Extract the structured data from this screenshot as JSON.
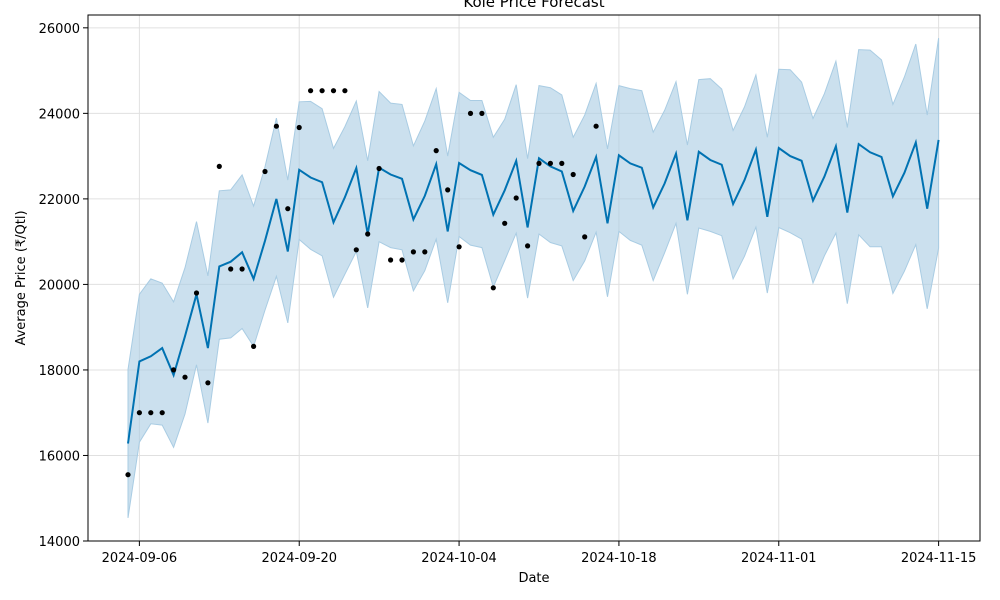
{
  "chart_data": {
    "type": "line",
    "title": "Kole Price Forecast",
    "xlabel": "Date",
    "ylabel": "Average Price (₹/Qtl)",
    "xlim": [
      "2024-09-01T12:00",
      "2024-11-18T15:00"
    ],
    "ylim": [
      14000,
      26300
    ],
    "x_ticks": [
      "2024-09-06",
      "2024-09-20",
      "2024-10-04",
      "2024-10-18",
      "2024-11-01",
      "2024-11-15"
    ],
    "y_ticks": [
      14000,
      16000,
      18000,
      20000,
      22000,
      24000,
      26000
    ],
    "grid": true,
    "colors": {
      "forecast": "#0072B2",
      "band": "#a9cce3",
      "observed": "#000000"
    },
    "series": [
      {
        "role": "forecast",
        "x": [
          "2024-09-05",
          "2024-09-06",
          "2024-09-07",
          "2024-09-08",
          "2024-09-09",
          "2024-09-10",
          "2024-09-11",
          "2024-09-12",
          "2024-09-13",
          "2024-09-14",
          "2024-09-15",
          "2024-09-16",
          "2024-09-17",
          "2024-09-18",
          "2024-09-19",
          "2024-09-20",
          "2024-09-21",
          "2024-09-22",
          "2024-09-23",
          "2024-09-24",
          "2024-09-25",
          "2024-09-26",
          "2024-09-27",
          "2024-09-28",
          "2024-09-29",
          "2024-09-30",
          "2024-10-01",
          "2024-10-02",
          "2024-10-03",
          "2024-10-04",
          "2024-10-05",
          "2024-10-06",
          "2024-10-07",
          "2024-10-08",
          "2024-10-09",
          "2024-10-10",
          "2024-10-11",
          "2024-10-12",
          "2024-10-13",
          "2024-10-14",
          "2024-10-15",
          "2024-10-16",
          "2024-10-17",
          "2024-10-18",
          "2024-10-19",
          "2024-10-20",
          "2024-10-21",
          "2024-10-22",
          "2024-10-23",
          "2024-10-24",
          "2024-10-25",
          "2024-10-26",
          "2024-10-27",
          "2024-10-28",
          "2024-10-29",
          "2024-10-30",
          "2024-10-31",
          "2024-11-01",
          "2024-11-02",
          "2024-11-03",
          "2024-11-04",
          "2024-11-05",
          "2024-11-06",
          "2024-11-07",
          "2024-11-08",
          "2024-11-09",
          "2024-11-10",
          "2024-11-11",
          "2024-11-12",
          "2024-11-13",
          "2024-11-14",
          "2024-11-15"
        ],
        "yhat": [
          16280,
          18200,
          18320,
          18510,
          17880,
          18790,
          19770,
          18510,
          20420,
          20530,
          20750,
          20130,
          21020,
          22000,
          20770,
          22680,
          22500,
          22390,
          21450,
          22040,
          22720,
          21180,
          22730,
          22570,
          22470,
          21520,
          22070,
          22810,
          21240,
          22840,
          22670,
          22560,
          21630,
          22200,
          22890,
          21330,
          22950,
          22760,
          22640,
          21720,
          22290,
          22980,
          21430,
          23020,
          22830,
          22730,
          21800,
          22360,
          23060,
          21500,
          23100,
          22910,
          22800,
          21880,
          22440,
          23150,
          21580,
          23190,
          23000,
          22890,
          21960,
          22520,
          23230,
          21680,
          23280,
          23090,
          22980,
          22060,
          22610,
          23320,
          21770,
          23380
        ],
        "upper": [
          18010,
          19770,
          20130,
          20030,
          19590,
          20390,
          21470,
          20200,
          22190,
          22210,
          22560,
          21830,
          22750,
          23890,
          22440,
          24270,
          24280,
          24110,
          23180,
          23690,
          24290,
          22890,
          24510,
          24240,
          24210,
          23240,
          23820,
          24580,
          23000,
          24490,
          24300,
          24300,
          23440,
          23860,
          24670,
          22940,
          24650,
          24600,
          24430,
          23440,
          23960,
          24700,
          23170,
          24650,
          24580,
          24530,
          23560,
          24070,
          24740,
          23260,
          24790,
          24810,
          24570,
          23600,
          24150,
          24900,
          23440,
          25030,
          25020,
          24730,
          23880,
          24460,
          25220,
          23670,
          25490,
          25480,
          25250,
          24210,
          24850,
          25620,
          23960,
          25760
        ],
        "lower": [
          14540,
          16310,
          16740,
          16710,
          16190,
          16970,
          18120,
          16760,
          18720,
          18750,
          18970,
          18550,
          19400,
          20190,
          19100,
          21050,
          20820,
          20670,
          19700,
          20240,
          20770,
          19450,
          21000,
          20860,
          20810,
          19850,
          20320,
          21060,
          19570,
          21120,
          20920,
          20860,
          19940,
          20560,
          21200,
          19680,
          21180,
          20980,
          20900,
          20090,
          20550,
          21220,
          19710,
          21240,
          21030,
          20920,
          20090,
          20740,
          21430,
          19770,
          21320,
          21240,
          21140,
          20130,
          20660,
          21340,
          19800,
          21330,
          21210,
          21060,
          20030,
          20670,
          21200,
          19550,
          21160,
          20880,
          20880,
          19790,
          20310,
          20930,
          19430,
          20850
        ]
      },
      {
        "role": "observed",
        "x": [
          "2024-09-05",
          "2024-09-06",
          "2024-09-07",
          "2024-09-08",
          "2024-09-09",
          "2024-09-10",
          "2024-09-11",
          "2024-09-12",
          "2024-09-13",
          "2024-09-14",
          "2024-09-15",
          "2024-09-16",
          "2024-09-17",
          "2024-09-18",
          "2024-09-19",
          "2024-09-20",
          "2024-09-21",
          "2024-09-22",
          "2024-09-23",
          "2024-09-24",
          "2024-09-25",
          "2024-09-26",
          "2024-09-27",
          "2024-09-28",
          "2024-09-29",
          "2024-09-30",
          "2024-10-01",
          "2024-10-02",
          "2024-10-03",
          "2024-10-04",
          "2024-10-05",
          "2024-10-06",
          "2024-10-07",
          "2024-10-08",
          "2024-10-09",
          "2024-10-10",
          "2024-10-11",
          "2024-10-12",
          "2024-10-13",
          "2024-10-14",
          "2024-10-15",
          "2024-10-16",
          "2024-10-17"
        ],
        "y": [
          15550,
          17000,
          17000,
          17000,
          18000,
          17830,
          19800,
          17700,
          22760,
          20360,
          20360,
          18550,
          22640,
          23700,
          21770,
          23670,
          24530,
          24530,
          24530,
          24530,
          20810,
          21180,
          22710,
          20570,
          20570,
          20760,
          20760,
          23130,
          22210,
          20880,
          24000,
          24000,
          19920,
          21430,
          22020,
          20900,
          22830,
          22830,
          22830,
          22570,
          21110,
          23700,
          null
        ]
      }
    ]
  }
}
